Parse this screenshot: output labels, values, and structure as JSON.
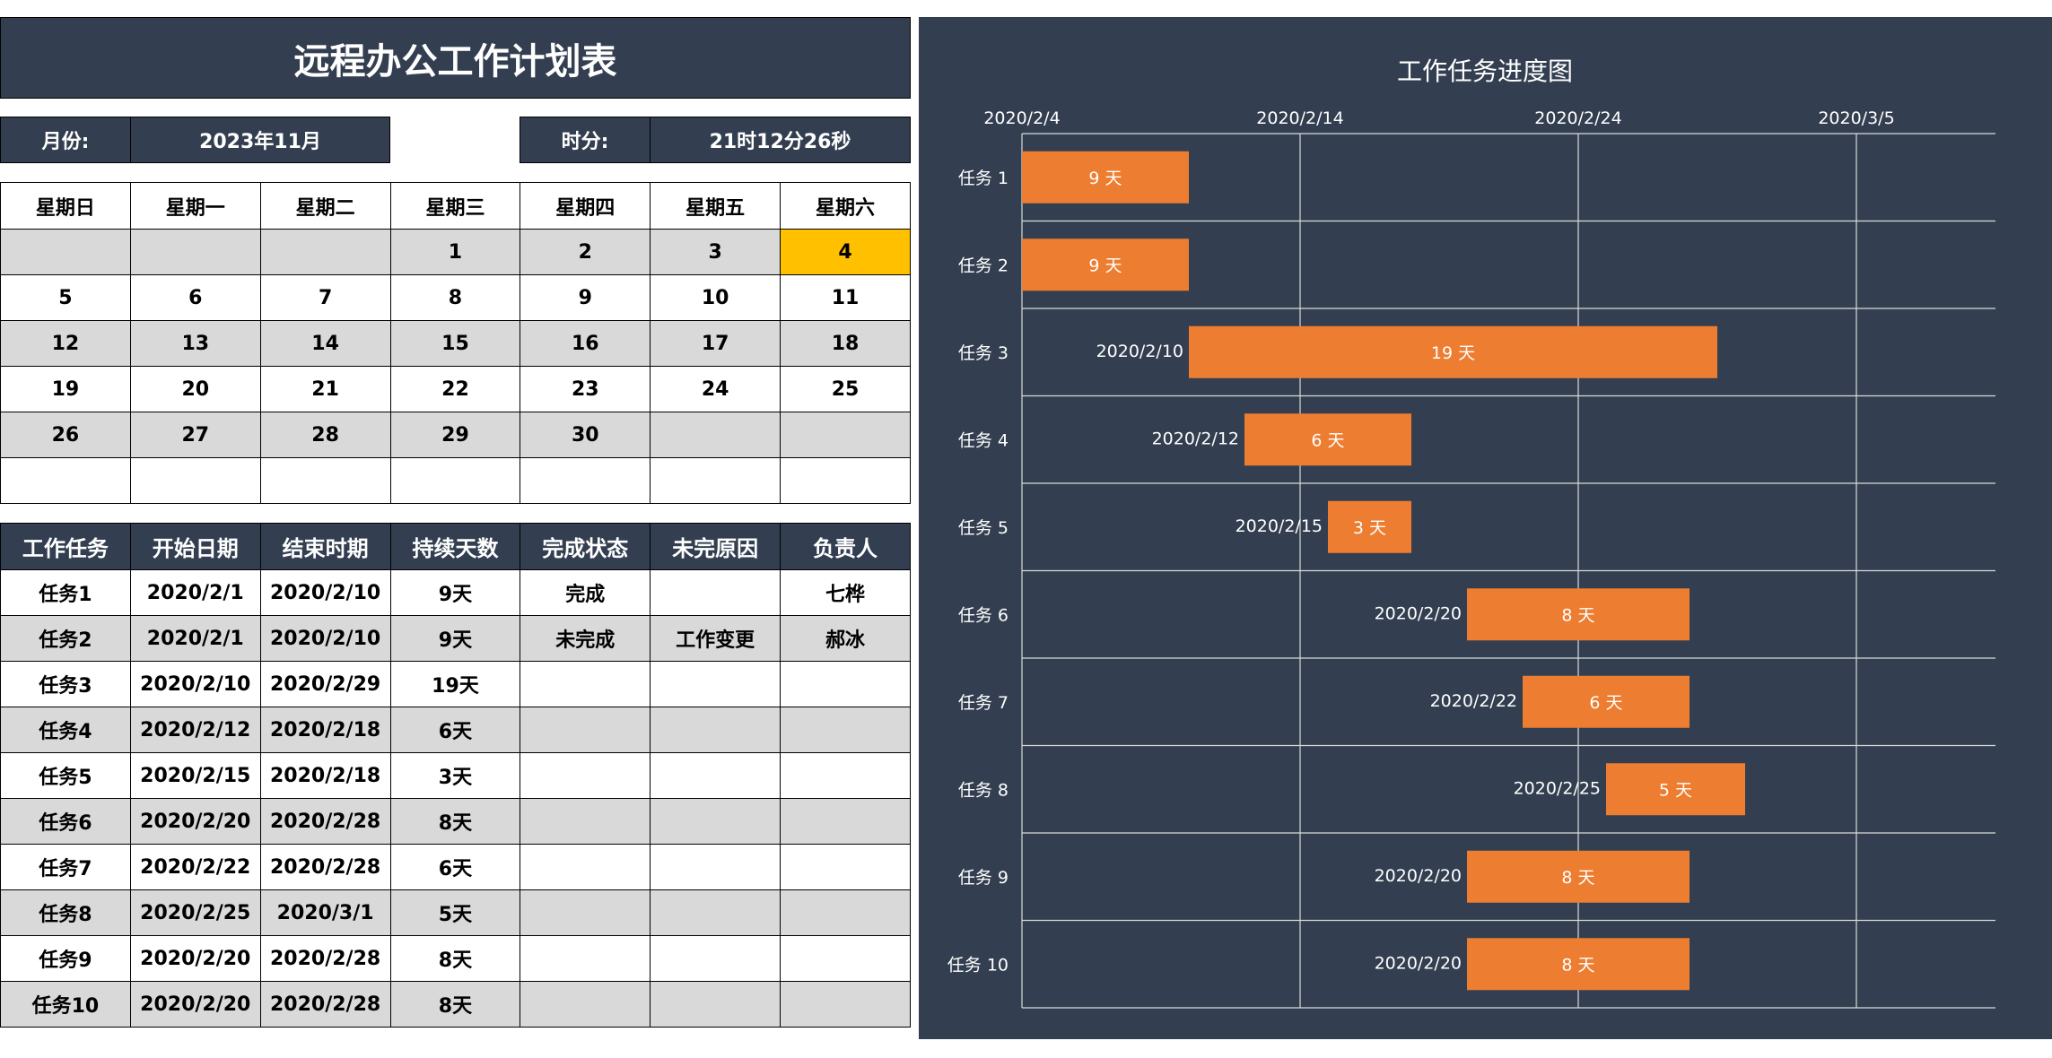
{
  "sheet": {
    "title": "远程办公工作计划表",
    "month_label": "月份:",
    "month_value": "2023年11月",
    "time_label": "时分:",
    "time_value": "21时12分26秒"
  },
  "calendar": {
    "weekdays": [
      "星期日",
      "星期一",
      "星期二",
      "星期三",
      "星期四",
      "星期五",
      "星期六"
    ],
    "weeks": [
      [
        "",
        "",
        "",
        "1",
        "2",
        "3",
        "4"
      ],
      [
        "5",
        "6",
        "7",
        "8",
        "9",
        "10",
        "11"
      ],
      [
        "12",
        "13",
        "14",
        "15",
        "16",
        "17",
        "18"
      ],
      [
        "19",
        "20",
        "21",
        "22",
        "23",
        "24",
        "25"
      ],
      [
        "26",
        "27",
        "28",
        "29",
        "30",
        "",
        ""
      ],
      [
        "",
        "",
        "",
        "",
        "",
        "",
        ""
      ]
    ],
    "highlight_color": "#ffc000"
  },
  "task_table": {
    "headers": [
      "工作任务",
      "开始日期",
      "结束时期",
      "持续天数",
      "完成状态",
      "未完原因",
      "负责人"
    ],
    "rows": [
      [
        "任务1",
        "2020/2/1",
        "2020/2/10",
        "9天",
        "完成",
        "",
        "七桦"
      ],
      [
        "任务2",
        "2020/2/1",
        "2020/2/10",
        "9天",
        "未完成",
        "工作变更",
        "郝冰"
      ],
      [
        "任务3",
        "2020/2/10",
        "2020/2/29",
        "19天",
        "",
        "",
        ""
      ],
      [
        "任务4",
        "2020/2/12",
        "2020/2/18",
        "6天",
        "",
        "",
        ""
      ],
      [
        "任务5",
        "2020/2/15",
        "2020/2/18",
        "3天",
        "",
        "",
        ""
      ],
      [
        "任务6",
        "2020/2/20",
        "2020/2/28",
        "8天",
        "",
        "",
        ""
      ],
      [
        "任务7",
        "2020/2/22",
        "2020/2/28",
        "6天",
        "",
        "",
        ""
      ],
      [
        "任务8",
        "2020/2/25",
        "2020/3/1",
        "5天",
        "",
        "",
        ""
      ],
      [
        "任务9",
        "2020/2/20",
        "2020/2/28",
        "8天",
        "",
        "",
        ""
      ],
      [
        "任务10",
        "2020/2/20",
        "2020/2/28",
        "8天",
        "",
        "",
        ""
      ]
    ]
  },
  "colors": {
    "dark": "#333f50",
    "bar": "#ed7d31",
    "stripe": "#d9d9d9"
  },
  "chart_data": {
    "type": "bar",
    "orientation": "horizontal-gantt",
    "title": "工作任务进度图",
    "xaxis_position": "top",
    "xlim": [
      "2020/2/4",
      "2020/3/10"
    ],
    "x_ticks": [
      "2020/2/4",
      "2020/2/14",
      "2020/2/24",
      "2020/3/5"
    ],
    "grid": true,
    "categories": [
      "任务 1",
      "任务 2",
      "任务 3",
      "任务 4",
      "任务 5",
      "任务 6",
      "任务 7",
      "任务 8",
      "任务 9",
      "任务 10"
    ],
    "start_dates": [
      "2020/2/1",
      "2020/2/1",
      "2020/2/10",
      "2020/2/12",
      "2020/2/15",
      "2020/2/20",
      "2020/2/22",
      "2020/2/25",
      "2020/2/20",
      "2020/2/20"
    ],
    "start_labels": [
      "",
      "",
      "2020/2/10",
      "2020/2/12",
      "2020/2/15",
      "2020/2/20",
      "2020/2/22",
      "2020/2/25",
      "2020/2/20",
      "2020/2/20"
    ],
    "durations": [
      9,
      9,
      19,
      6,
      3,
      8,
      6,
      5,
      8,
      8
    ],
    "duration_labels": [
      "9 天",
      "9 天",
      "19 天",
      "6 天",
      "3 天",
      "8 天",
      "6 天",
      "5 天",
      "8 天",
      "8 天"
    ]
  }
}
